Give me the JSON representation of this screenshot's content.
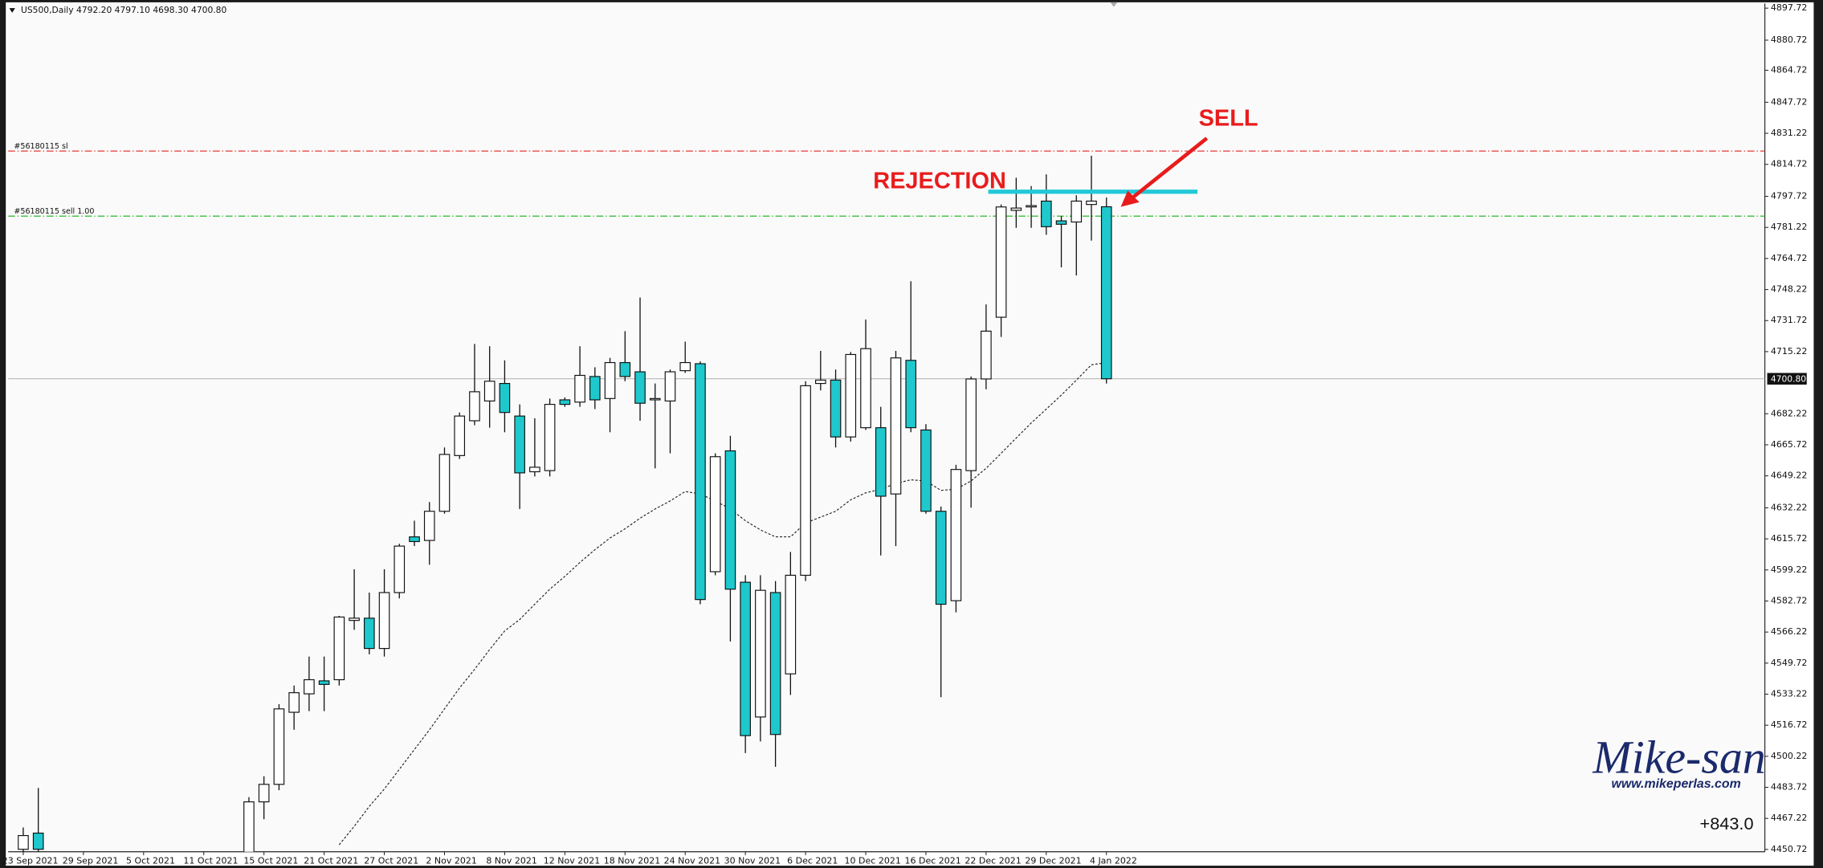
{
  "chart_data": {
    "type": "candlestick",
    "header": "US500,Daily 4792.20 4797.10 4698.30 4700.80",
    "categories": [
      "23 Sep 2021",
      null,
      null,
      null,
      "29 Sep 2021",
      null,
      null,
      null,
      "5 Oct 2021",
      null,
      null,
      null,
      "11 Oct 2021",
      null,
      null,
      null,
      "15 Oct 2021",
      null,
      null,
      null,
      "21 Oct 2021",
      null,
      null,
      null,
      "27 Oct 2021",
      null,
      null,
      null,
      "2 Nov 2021",
      null,
      null,
      null,
      "8 Nov 2021",
      null,
      null,
      null,
      "12 Nov 2021",
      null,
      null,
      null,
      "18 Nov 2021",
      null,
      null,
      null,
      "24 Nov 2021",
      null,
      null,
      null,
      "30 Nov 2021",
      null,
      null,
      null,
      "6 Dec 2021",
      null,
      null,
      null,
      "10 Dec 2021",
      null,
      null,
      null,
      "16 Dec 2021",
      null,
      null,
      null,
      "22 Dec 2021",
      null,
      null,
      null,
      "29 Dec 2021",
      null,
      null,
      null,
      "4 Jan 2022"
    ],
    "open": [
      4450.8,
      4459.4,
      null,
      null,
      null,
      null,
      null,
      null,
      null,
      null,
      null,
      null,
      null,
      null,
      null,
      4440,
      4476.0,
      4485.3,
      4523.6,
      4533.4,
      4540.3,
      4540.9,
      4572.4,
      4573.6,
      4557.5,
      4587.2,
      4616.8,
      4614.9,
      4630.4,
      4660.0,
      4678.5,
      4689.0,
      4698.3,
      4681.0,
      4651.4,
      4652.0,
      4689.6,
      4688.4,
      4702.0,
      4690.3,
      4709.4,
      4704.5,
      4689.6,
      4689.0,
      4705.1,
      4708.8,
      4598.3,
      4662.5,
      4592.7,
      4521.1,
      4587.2,
      4544.0,
      4596.4,
      4698.3,
      4700.1,
      4669.9,
      4674.8,
      4674.8,
      4639.6,
      4710.6,
      4673.6,
      4630.4,
      4582.9,
      4652.0,
      4700.7,
      4733.5,
      4790.3,
      4792.1,
      4795.2,
      4784.7,
      4784.1,
      4793.4,
      4792.2
    ],
    "high": [
      4462.4,
      4483.4,
      null,
      null,
      null,
      null,
      null,
      null,
      null,
      null,
      null,
      null,
      null,
      null,
      null,
      4478.5,
      4489.6,
      4527.9,
      4537.8,
      4553.2,
      4553.2,
      4574.8,
      4599.6,
      4587.2,
      4599.6,
      4613.1,
      4625.4,
      4635.3,
      4664.3,
      4682.9,
      4719.3,
      4718.1,
      4710.6,
      4687.2,
      4679.8,
      4690.3,
      4690.9,
      4718.1,
      4706.9,
      4711.9,
      4726.1,
      4744.0,
      4698.3,
      4705.7,
      4720.5,
      4710.0,
      4661.2,
      4670.5,
      4596.4,
      4596.4,
      4593.3,
      4608.8,
      4699.5,
      4715.6,
      4705.7,
      4715.0,
      4732.3,
      4685.9,
      4715.6,
      4752.6,
      4676.7,
      4632.9,
      4655.1,
      4702.0,
      4740.3,
      4793.4,
      4807.6,
      4803.2,
      4809.4,
      4787.2,
      4798.3,
      4819.3,
      4797.1
    ],
    "low": [
      4449.5,
      4448.3,
      null,
      null,
      null,
      null,
      null,
      null,
      null,
      null,
      null,
      null,
      null,
      null,
      null,
      4435,
      4466.8,
      4482.2,
      4514.3,
      4524.2,
      4524.2,
      4537.8,
      4567.4,
      4554.4,
      4553.2,
      4584.1,
      4611.9,
      4602.0,
      4629.1,
      4658.2,
      4676.1,
      4674.8,
      4672.4,
      4631.6,
      4648.9,
      4648.9,
      4685.9,
      4685.9,
      4684.7,
      4672.4,
      4699.5,
      4678.5,
      4653.2,
      4661.2,
      4703.9,
      4581.0,
      4596.4,
      4561.2,
      4501.9,
      4508.1,
      4494.6,
      4532.8,
      4593.3,
      4694.6,
      4664.3,
      4667.4,
      4673.6,
      4606.9,
      4611.9,
      4672.4,
      4629.1,
      4531.6,
      4576.7,
      4632.3,
      4695.2,
      4723.0,
      4781.0,
      4781.0,
      4777.3,
      4760.0,
      4755.7,
      4774.2,
      4698.3
    ],
    "close": [
      4458.1,
      4450.8,
      null,
      null,
      null,
      null,
      null,
      null,
      null,
      null,
      null,
      null,
      null,
      null,
      null,
      4476.0,
      4485.3,
      4525.4,
      4534.0,
      4540.9,
      4538.4,
      4574.2,
      4573.6,
      4557.5,
      4587.2,
      4611.9,
      4614.3,
      4630.4,
      4660.6,
      4681.0,
      4693.9,
      4699.5,
      4682.9,
      4650.8,
      4653.8,
      4687.2,
      4687.2,
      4702.6,
      4689.6,
      4709.4,
      4702.0,
      4687.8,
      4690.3,
      4704.5,
      4709.4,
      4583.5,
      4659.4,
      4589.0,
      4511.2,
      4588.4,
      4511.8,
      4596.4,
      4697.1,
      4700.1,
      4669.9,
      4713.7,
      4716.8,
      4638.4,
      4711.9,
      4674.8,
      4630.4,
      4581.0,
      4652.6,
      4700.7,
      4726.1,
      4792.1,
      4791.5,
      4792.8,
      4781.6,
      4782.9,
      4795.2,
      4795.2,
      4700.8
    ],
    "up_color": "#ffffff",
    "down_color": "#1ec8cc",
    "moving_average": {
      "color": "#222222",
      "values": [
        null,
        null,
        null,
        null,
        null,
        null,
        null,
        null,
        null,
        null,
        null,
        null,
        null,
        null,
        null,
        null,
        null,
        null,
        null,
        null,
        null,
        4453.2,
        4463.0,
        4473.6,
        4482.8,
        4493.3,
        4503.8,
        4514.3,
        4525.4,
        4536.5,
        4546.4,
        4556.9,
        4566.8,
        4572.9,
        4581.0,
        4589.0,
        4595.8,
        4603.2,
        4610.0,
        4616.2,
        4621.1,
        4626.7,
        4631.6,
        4635.9,
        4640.9,
        4639.6,
        4635.9,
        4631.6,
        4625.4,
        4620.5,
        4616.8,
        4616.8,
        4624.2,
        4627.3,
        4630.4,
        4636.5,
        4640.2,
        4642.1,
        4645.2,
        4647.1,
        4646.5,
        4641.5,
        4642.1,
        4646.5,
        4653.2,
        4661.2,
        4669.3,
        4677.3,
        4684.7,
        4692.1,
        4700.1,
        4708.2,
        4709.4
      ]
    },
    "ylim": [
      4449.5,
      4900.2
    ],
    "yticks": [
      4897.72,
      4880.72,
      4864.72,
      4847.72,
      4831.22,
      4814.72,
      4797.72,
      4781.22,
      4764.72,
      4748.22,
      4731.72,
      4715.22,
      4682.22,
      4665.72,
      4649.22,
      4632.22,
      4615.72,
      4599.22,
      4582.72,
      4566.22,
      4549.72,
      4533.22,
      4516.72,
      4500.22,
      4483.72,
      4467.22,
      4450.72
    ],
    "current_price": {
      "value": 4700.8,
      "label": "4700.80"
    },
    "levels": [
      {
        "label": "#56180115 sl",
        "value": 4821.8,
        "color": "#e53935"
      },
      {
        "label": "#56180115 sell 1.00",
        "value": 4787.2,
        "color": "#3cbf3c"
      }
    ],
    "rejection": {
      "label": "REJECTION",
      "value": 4800.2,
      "color": "#22c8d8"
    },
    "sell_annotation": "SELL",
    "annotation_color": "#e81c1c",
    "watermark": {
      "title": "Mike-san",
      "url": "www.mikeperlas.com"
    },
    "profit": "+843.0"
  }
}
